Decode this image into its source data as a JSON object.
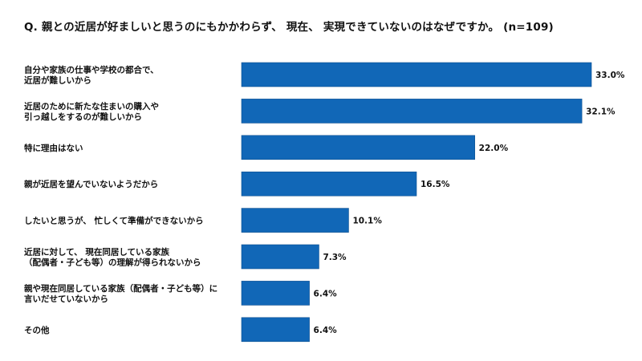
{
  "chart_data": {
    "type": "bar",
    "orientation": "horizontal",
    "title": "Q. 親との近居が好ましいと思うのにもかかわらず、 現在、 実現できていないのはなぜですか。 (n=109)",
    "categories": [
      "自分や家族の仕事や学校の都合で、\n近居が難しいから",
      "近居のために新たな住まいの購入や\n引っ越しをするのが難しいから",
      "特に理由はない",
      "親が近居を望んでいないようだから",
      "したいと思うが、 忙しくて準備ができないから",
      "近居に対して、 現在同居している家族\n（配偶者・子ども等）の理解が得られないから",
      "親や現在同居している家族（配偶者・子ども等）に\n言いだせていないから",
      "その他"
    ],
    "values": [
      33.0,
      32.1,
      22.0,
      16.5,
      10.1,
      7.3,
      6.4,
      6.4
    ],
    "value_labels": [
      "33.0%",
      "32.1%",
      "22.0%",
      "16.5%",
      "10.1%",
      "7.3%",
      "6.4%",
      "6.4%"
    ],
    "unit": "%",
    "xlim": [
      0,
      33.0
    ],
    "grid": false,
    "legend": "none",
    "bar_color": "#1167b7",
    "bar_edge_color": "#0d4f8f"
  }
}
